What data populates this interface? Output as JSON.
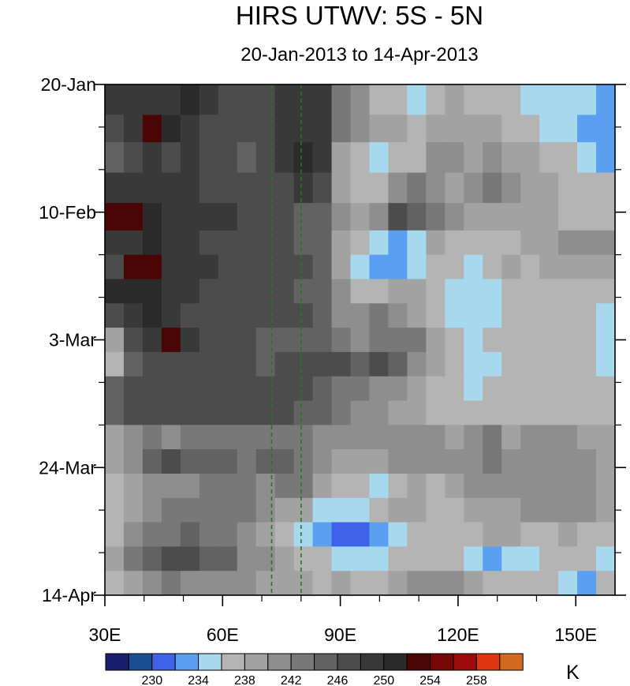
{
  "chart_data": {
    "type": "heatmap",
    "title": "HIRS UTWV: 5S - 5N",
    "subtitle": "20-Jan-2013 to 14-Apr-2013",
    "xlabel": "",
    "ylabel": "",
    "x_range": [
      30,
      160
    ],
    "y_range": [
      "20-Jan-2013",
      "14-Apr-2013"
    ],
    "x_ticks": [
      {
        "value": 30,
        "label": "30E"
      },
      {
        "value": 60,
        "label": "60E"
      },
      {
        "value": 90,
        "label": "90E"
      },
      {
        "value": 120,
        "label": "120E"
      },
      {
        "value": 150,
        "label": "150E"
      }
    ],
    "y_ticks": [
      {
        "day": 0,
        "label": "20-Jan"
      },
      {
        "day": 21,
        "label": "10-Feb"
      },
      {
        "day": 42,
        "label": "3-Mar"
      },
      {
        "day": 63,
        "label": "24-Mar"
      },
      {
        "day": 84,
        "label": "14-Apr"
      }
    ],
    "reference_lines": [
      {
        "x": 72.5,
        "style": "dashed",
        "color": "#1f7a1f"
      },
      {
        "x": 80,
        "style": "dashed",
        "color": "#1f7a1f"
      }
    ],
    "colorbar": {
      "units": "K",
      "levels": [
        228,
        230,
        232,
        234,
        236,
        238,
        240,
        242,
        244,
        246,
        248,
        250,
        252,
        254,
        256,
        258,
        260
      ],
      "labels": [
        {
          "value": 230,
          "label": "230"
        },
        {
          "value": 234,
          "label": "234"
        },
        {
          "value": 238,
          "label": "238"
        },
        {
          "value": 242,
          "label": "242"
        },
        {
          "value": 246,
          "label": "246"
        },
        {
          "value": 250,
          "label": "250"
        },
        {
          "value": 254,
          "label": "254"
        },
        {
          "value": 258,
          "label": "258"
        }
      ],
      "colors": [
        "#1a1e6e",
        "#1c4e94",
        "#3f63e8",
        "#5a9ff0",
        "#a8d8ee",
        "#b4b4b4",
        "#a2a2a2",
        "#8e8e8e",
        "#787878",
        "#626262",
        "#4c4c4c",
        "#393939",
        "#2b2b2b",
        "#4a0505",
        "#760808",
        "#9c0b0b",
        "#e03412",
        "#d2691e"
      ]
    },
    "rows": [
      {
        "day": 3,
        "values": [
          248,
          248,
          249,
          249,
          250,
          248,
          247,
          246,
          246,
          248,
          249,
          248,
          243,
          240,
          237,
          236,
          235,
          236,
          238,
          237,
          236,
          236,
          235,
          235,
          234,
          234,
          233
        ]
      },
      {
        "day": 7,
        "values": [
          247,
          249,
          252,
          250,
          249,
          247,
          247,
          246,
          247,
          248,
          249,
          248,
          243,
          241,
          239,
          238,
          237,
          238,
          239,
          238,
          238,
          237,
          236,
          235,
          234,
          233,
          232
        ]
      },
      {
        "day": 12,
        "values": [
          245,
          247,
          248,
          247,
          248,
          246,
          246,
          245,
          246,
          249,
          250,
          249,
          239,
          236,
          234,
          236,
          237,
          240,
          240,
          239,
          241,
          239,
          238,
          237,
          236,
          234,
          233
        ]
      },
      {
        "day": 17,
        "values": [
          248,
          248,
          249,
          248,
          248,
          247,
          247,
          246,
          246,
          247,
          248,
          246,
          239,
          236,
          237,
          241,
          242,
          240,
          239,
          240,
          242,
          240,
          239,
          238,
          237,
          236,
          236
        ]
      },
      {
        "day": 22,
        "values": [
          253,
          252,
          250,
          249,
          248,
          248,
          248,
          247,
          246,
          246,
          245,
          244,
          240,
          239,
          240,
          246,
          245,
          242,
          240,
          238,
          238,
          238,
          239,
          238,
          237,
          237,
          236
        ]
      },
      {
        "day": 26,
        "values": [
          248,
          249,
          250,
          249,
          248,
          247,
          247,
          246,
          246,
          246,
          245,
          244,
          239,
          236,
          234,
          233,
          235,
          238,
          237,
          237,
          236,
          237,
          238,
          238,
          240,
          241,
          240
        ]
      },
      {
        "day": 30,
        "values": [
          247,
          253,
          252,
          249,
          249,
          248,
          247,
          247,
          246,
          246,
          246,
          244,
          238,
          234,
          232,
          233,
          235,
          237,
          236,
          235,
          237,
          238,
          237,
          238,
          239,
          239,
          238
        ]
      },
      {
        "day": 34,
        "values": [
          250,
          250,
          250,
          249,
          248,
          247,
          247,
          246,
          246,
          246,
          245,
          244,
          240,
          237,
          237,
          238,
          238,
          236,
          235,
          235,
          235,
          236,
          237,
          236,
          236,
          236,
          236
        ]
      },
      {
        "day": 38,
        "values": [
          246,
          248,
          250,
          248,
          247,
          247,
          246,
          246,
          246,
          246,
          246,
          244,
          240,
          241,
          242,
          240,
          238,
          237,
          235,
          234,
          234,
          236,
          237,
          236,
          236,
          236,
          235
        ]
      },
      {
        "day": 42,
        "values": [
          238,
          246,
          248,
          253,
          248,
          247,
          246,
          246,
          245,
          245,
          244,
          244,
          242,
          241,
          242,
          242,
          243,
          238,
          236,
          235,
          236,
          236,
          236,
          236,
          237,
          236,
          235
        ]
      },
      {
        "day": 46,
        "values": [
          237,
          245,
          247,
          247,
          246,
          247,
          246,
          246,
          245,
          246,
          247,
          246,
          246,
          245,
          246,
          244,
          240,
          238,
          236,
          235,
          235,
          236,
          236,
          236,
          237,
          236,
          235
        ]
      },
      {
        "day": 50,
        "values": [
          245,
          247,
          246,
          246,
          246,
          246,
          247,
          246,
          246,
          246,
          246,
          244,
          243,
          242,
          241,
          240,
          238,
          237,
          236,
          235,
          236,
          236,
          236,
          237,
          237,
          236,
          236
        ]
      },
      {
        "day": 54,
        "values": [
          244,
          246,
          247,
          246,
          246,
          246,
          246,
          246,
          246,
          246,
          245,
          244,
          242,
          241,
          240,
          239,
          238,
          237,
          236,
          236,
          236,
          236,
          236,
          236,
          236,
          236,
          236
        ]
      },
      {
        "day": 58,
        "values": [
          238,
          240,
          242,
          241,
          242,
          242,
          242,
          242,
          243,
          243,
          242,
          241,
          240,
          240,
          240,
          240,
          240,
          240,
          239,
          240,
          242,
          239,
          240,
          240,
          240,
          239,
          238
        ]
      },
      {
        "day": 62,
        "values": [
          238,
          240,
          244,
          246,
          244,
          244,
          244,
          243,
          244,
          244,
          243,
          241,
          239,
          238,
          239,
          240,
          240,
          240,
          240,
          241,
          243,
          241,
          240,
          240,
          240,
          240,
          239
        ]
      },
      {
        "day": 66,
        "values": [
          236,
          238,
          240,
          241,
          241,
          242,
          243,
          242,
          241,
          242,
          242,
          239,
          237,
          236,
          235,
          236,
          238,
          237,
          239,
          240,
          240,
          240,
          241,
          240,
          240,
          240,
          239
        ]
      },
      {
        "day": 70,
        "values": [
          236,
          238,
          241,
          242,
          243,
          243,
          243,
          242,
          240,
          239,
          238,
          235,
          234,
          235,
          236,
          238,
          238,
          237,
          236,
          238,
          239,
          239,
          240,
          240,
          240,
          240,
          238
        ]
      },
      {
        "day": 74,
        "values": [
          236,
          240,
          242,
          243,
          244,
          243,
          242,
          240,
          238,
          236,
          235,
          233,
          231,
          230,
          232,
          235,
          236,
          236,
          236,
          237,
          238,
          238,
          237,
          237,
          238,
          237,
          236
        ]
      },
      {
        "day": 78,
        "values": [
          238,
          243,
          244,
          247,
          246,
          245,
          244,
          241,
          240,
          238,
          237,
          236,
          235,
          234,
          234,
          236,
          237,
          237,
          236,
          234,
          233,
          234,
          235,
          236,
          236,
          236,
          235
        ]
      },
      {
        "day": 82,
        "values": [
          236,
          238,
          240,
          242,
          241,
          241,
          241,
          240,
          239,
          238,
          238,
          237,
          238,
          237,
          237,
          238,
          240,
          241,
          240,
          238,
          236,
          236,
          236,
          236,
          235,
          232,
          236
        ]
      }
    ]
  }
}
